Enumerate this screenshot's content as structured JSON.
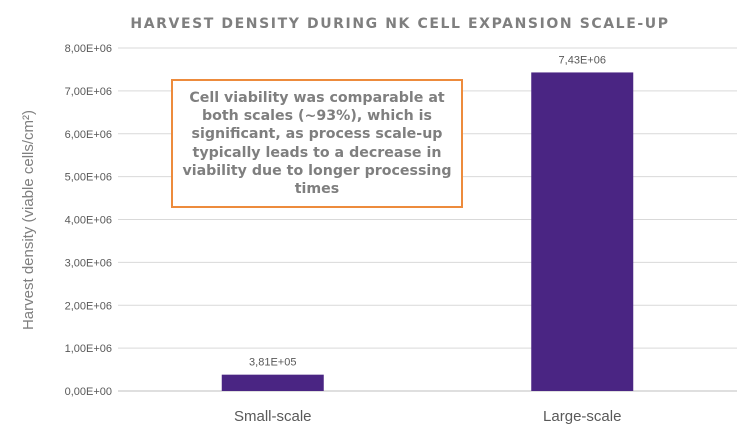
{
  "chart_data": {
    "type": "bar",
    "title": "HARVEST DENSITY DURING NK CELL EXPANSION SCALE-UP",
    "xlabel": "",
    "ylabel": "Harvest density (viable cells/cm²)",
    "categories": [
      "Small-scale",
      "Large-scale"
    ],
    "values": [
      381000,
      7430000
    ],
    "data_labels": [
      "3,81E+05",
      "7,43E+06"
    ],
    "ylim": [
      0,
      8000000
    ],
    "yticks": [
      0,
      1000000,
      2000000,
      3000000,
      4000000,
      5000000,
      6000000,
      7000000,
      8000000
    ],
    "ytick_labels": [
      "0,00E+00",
      "1,00E+06",
      "2,00E+06",
      "3,00E+06",
      "4,00E+06",
      "5,00E+06",
      "6,00E+06",
      "7,00E+06",
      "8,00E+06"
    ],
    "grid": true,
    "bar_color": "#4A2583",
    "annotation": "Cell viability was comparable at both scales (~93%), which is significant, as process scale-up typically leads to a decrease in viability due to longer processing times",
    "annotation_border_color": "#ED8B3C"
  }
}
